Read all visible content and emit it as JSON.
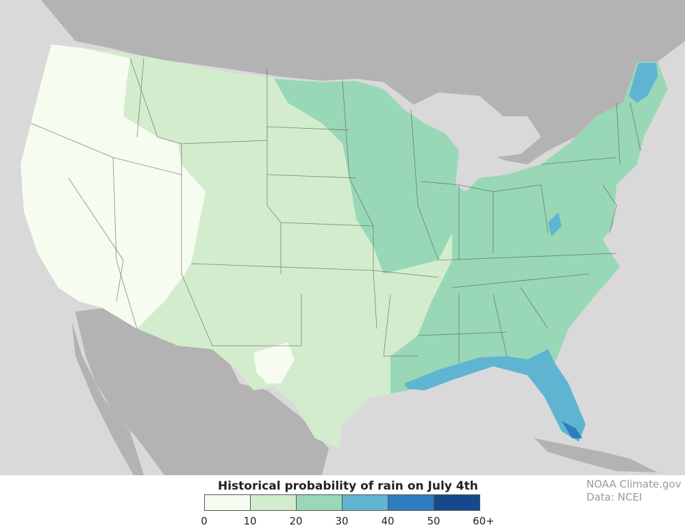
{
  "legend": {
    "title": "Historical probability of rain on July 4th",
    "bins": [
      {
        "color": "#f6fcf0"
      },
      {
        "color": "#d4ecce"
      },
      {
        "color": "#98d8b7"
      },
      {
        "color": "#5fb4d1"
      },
      {
        "color": "#2d7dc0"
      },
      {
        "color": "#16488c"
      }
    ],
    "ticks": [
      "0",
      "10",
      "20",
      "30",
      "40",
      "50",
      "60+"
    ]
  },
  "credit": {
    "source": "NOAA Climate.gov",
    "data": "Data: NCEI"
  },
  "colors": {
    "ocean": "#d9d9d9",
    "land_outside": "#b3b3b3",
    "state_border": "#555555"
  }
}
